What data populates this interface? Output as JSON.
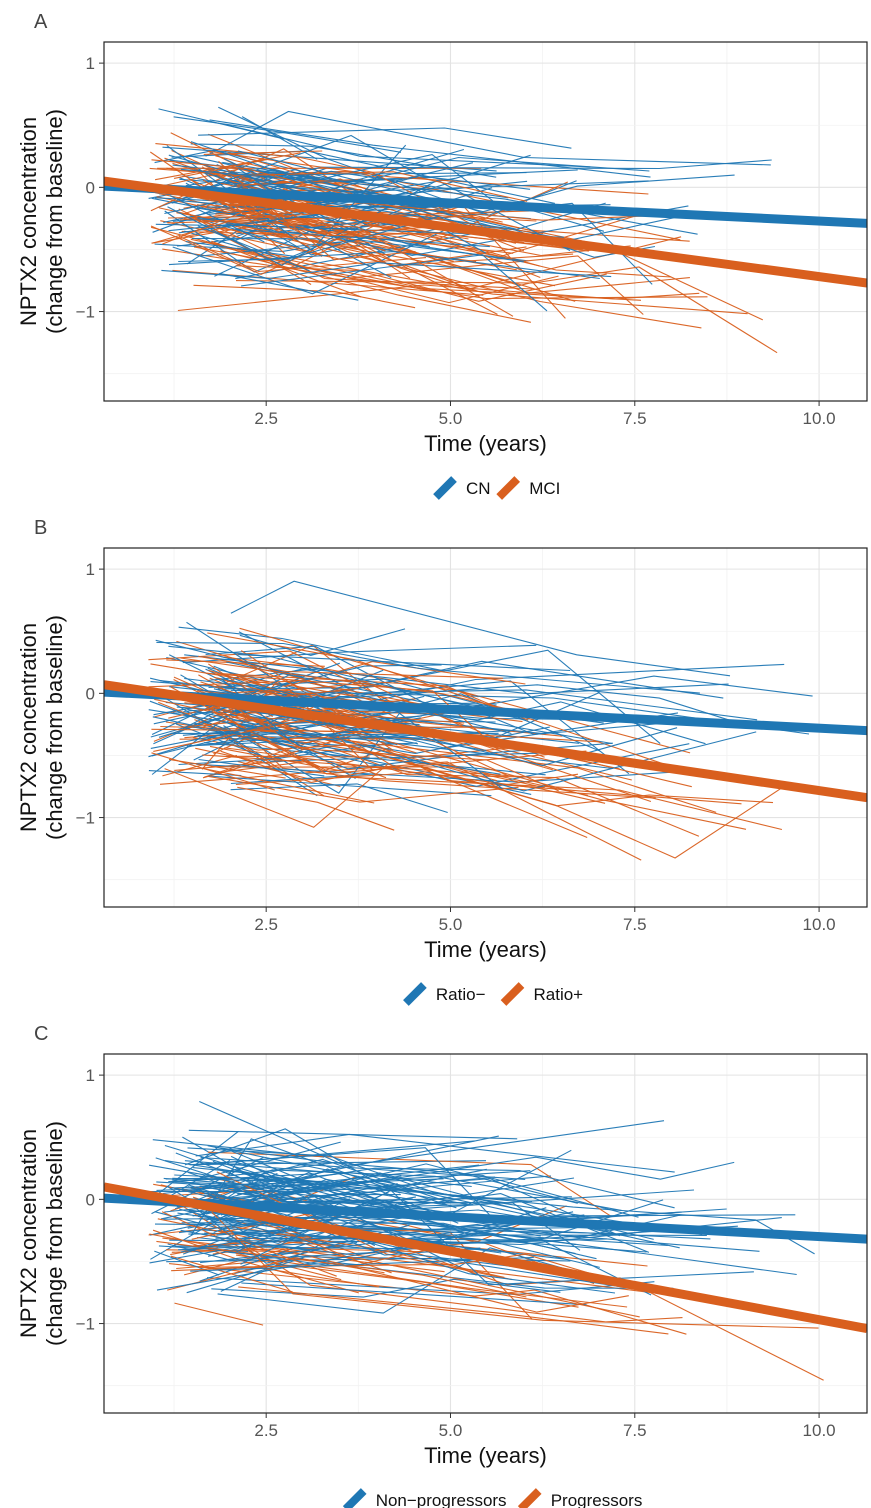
{
  "chart_data": [
    {
      "panel_label": "A",
      "type": "line",
      "xlabel": "Time (years)",
      "ylabel": "NPTX2 concentration (change from baseline)",
      "ylabel_lines": [
        "NPTX2 concentration",
        "(change from baseline)"
      ],
      "xlim": [
        0.3,
        10.65
      ],
      "ylim": [
        -1.72,
        1.17
      ],
      "x_ticks": [
        2.5,
        5.0,
        7.5,
        10.0
      ],
      "x_tick_labels": [
        "2.5",
        "5.0",
        "7.5",
        "10.0"
      ],
      "y_ticks": [
        -1,
        0,
        1
      ],
      "y_tick_labels": [
        "−1",
        "0",
        "1"
      ],
      "grid": true,
      "legend_position": "bottom",
      "series": [
        {
          "name": "CN",
          "color": "#1f77b4",
          "trend": [
            [
              0.3,
              0.01
            ],
            [
              10.65,
              -0.29
            ]
          ]
        },
        {
          "name": "MCI",
          "color": "#d95f1e",
          "trend": [
            [
              0.3,
              0.05
            ],
            [
              10.65,
              -0.77
            ]
          ]
        }
      ]
    },
    {
      "panel_label": "B",
      "type": "line",
      "xlabel": "Time (years)",
      "ylabel": "NPTX2 concentration (change from baseline)",
      "ylabel_lines": [
        "NPTX2 concentration",
        "(change from baseline)"
      ],
      "xlim": [
        0.3,
        10.65
      ],
      "ylim": [
        -1.72,
        1.17
      ],
      "x_ticks": [
        2.5,
        5.0,
        7.5,
        10.0
      ],
      "x_tick_labels": [
        "2.5",
        "5.0",
        "7.5",
        "10.0"
      ],
      "y_ticks": [
        -1,
        0,
        1
      ],
      "y_tick_labels": [
        "−1",
        "0",
        "1"
      ],
      "grid": true,
      "legend_position": "bottom",
      "series": [
        {
          "name": "Ratio−",
          "color": "#1f77b4",
          "trend": [
            [
              0.3,
              0.01
            ],
            [
              10.65,
              -0.3
            ]
          ]
        },
        {
          "name": "Ratio+",
          "color": "#d95f1e",
          "trend": [
            [
              0.3,
              0.07
            ],
            [
              10.65,
              -0.84
            ]
          ]
        }
      ]
    },
    {
      "panel_label": "C",
      "type": "line",
      "xlabel": "Time (years)",
      "ylabel": "NPTX2 concentration (change from baseline)",
      "ylabel_lines": [
        "NPTX2 concentration",
        "(change from baseline)"
      ],
      "xlim": [
        0.3,
        10.65
      ],
      "ylim": [
        -1.72,
        1.17
      ],
      "x_ticks": [
        2.5,
        5.0,
        7.5,
        10.0
      ],
      "x_tick_labels": [
        "2.5",
        "5.0",
        "7.5",
        "10.0"
      ],
      "y_ticks": [
        -1,
        0,
        1
      ],
      "y_tick_labels": [
        "−1",
        "0",
        "1"
      ],
      "grid": true,
      "legend_position": "bottom",
      "series": [
        {
          "name": "Non−progressors",
          "color": "#1f77b4",
          "trend": [
            [
              0.3,
              0.01
            ],
            [
              10.65,
              -0.32
            ]
          ]
        },
        {
          "name": "Progressors",
          "color": "#d95f1e",
          "trend": [
            [
              0.3,
              0.1
            ],
            [
              10.65,
              -1.04
            ]
          ]
        }
      ]
    }
  ]
}
